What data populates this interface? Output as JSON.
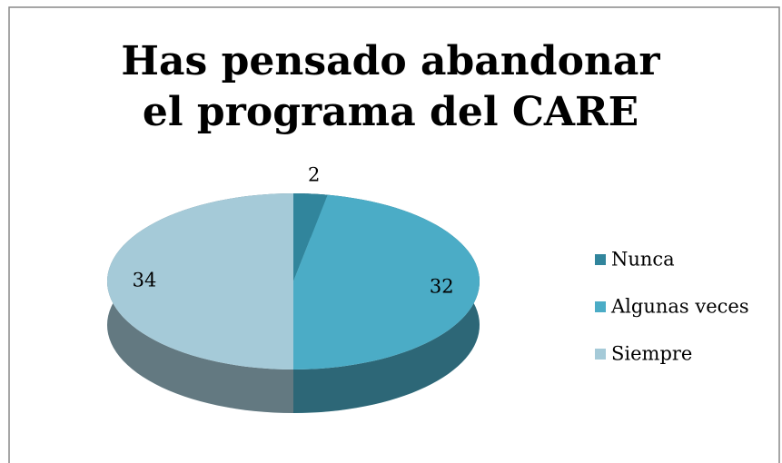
{
  "chart_data": {
    "type": "pie3d",
    "title": "Has pensado abandonar el programa del CARE",
    "categories": [
      "Nunca",
      "Algunas veces",
      "Siempre"
    ],
    "values": [
      2,
      32,
      34
    ],
    "colors": [
      "#31859c",
      "#4bacc6",
      "#a5cad8"
    ],
    "legend": "right"
  }
}
